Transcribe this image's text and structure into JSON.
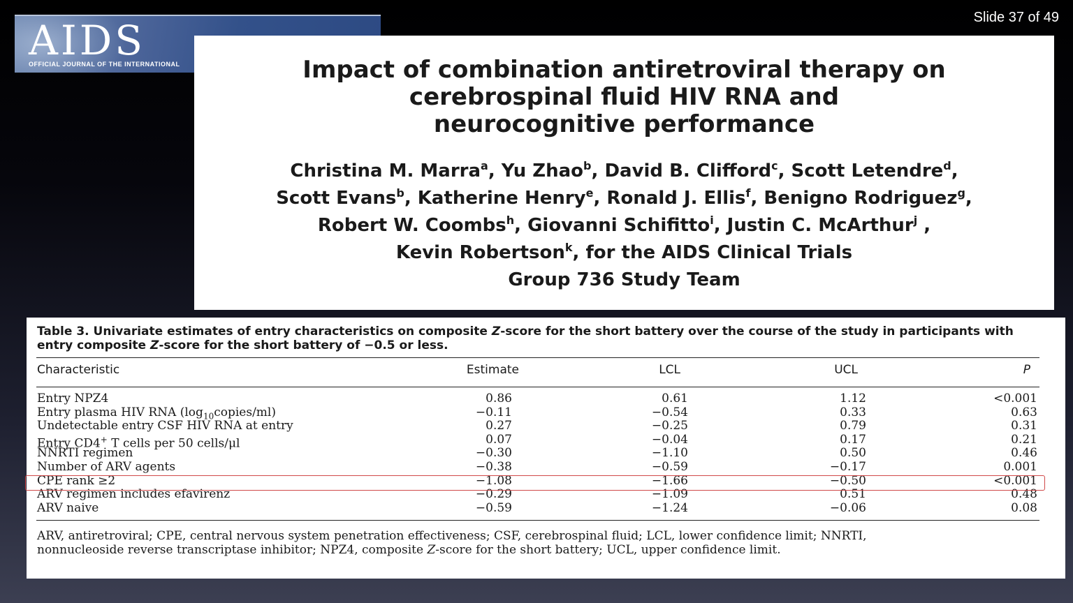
{
  "slide": {
    "counter": "Slide 37 of 49"
  },
  "journal": {
    "name": "AIDS",
    "tagline": "OFFICIAL JOURNAL OF THE INTERNATIONAL"
  },
  "paper": {
    "title_lines": [
      "Impact of combination antiretroviral therapy on",
      "cerebrospinal fluid HIV RNA and",
      "neurocognitive performance"
    ],
    "authors": [
      {
        "name": "Christina M. Marra",
        "sup": "a",
        "sep": ", "
      },
      {
        "name": "Yu Zhao",
        "sup": "b",
        "sep": ", "
      },
      {
        "name": "David B. Clifford",
        "sup": "c",
        "sep": ", "
      },
      {
        "name": "Scott Letendre",
        "sup": "d",
        "sep": ", "
      },
      {
        "name": "Scott Evans",
        "sup": "b",
        "sep": ", "
      },
      {
        "name": "Katherine Henry",
        "sup": "e",
        "sep": ", "
      },
      {
        "name": "Ronald J. Ellis",
        "sup": "f",
        "sep": ", "
      },
      {
        "name": "Benigno Rodriguez",
        "sup": "g",
        "sep": ", "
      },
      {
        "name": "Robert W. Coombs",
        "sup": "h",
        "sep": ", "
      },
      {
        "name": "Giovanni Schifitto",
        "sup": "i",
        "sep": ", "
      },
      {
        "name": "Justin C. McArthur",
        "sup": "j",
        "sep": " , "
      },
      {
        "name": "Kevin Robertson",
        "sup": "k",
        "sep": ", "
      }
    ],
    "author_lines": [
      [
        0,
        1,
        2,
        3
      ],
      [
        4,
        5,
        6,
        7
      ],
      [
        8,
        9,
        10
      ],
      [
        11
      ]
    ],
    "group_line_1": "for the AIDS Clinical Trials",
    "group_line_2": "Group 736 Study Team"
  },
  "table": {
    "caption_line_1": "Table 3.  Univariate estimates of entry characteristics on composite Z-score for the short battery over the course of the study in participants with",
    "caption_line_2": "entry composite Z-score for the short battery of −0.5 or less.",
    "headers": [
      "Characteristic",
      "Estimate",
      "LCL",
      "UCL",
      "P"
    ],
    "rows": [
      {
        "characteristic": "Entry NPZ4",
        "estimate": "0.86",
        "lcl": "0.61",
        "ucl": "1.12",
        "p": "<0.001"
      },
      {
        "characteristic": "Entry plasma HIV RNA (log10copies/ml)",
        "estimate": "−0.11",
        "lcl": "−0.54",
        "ucl": "0.33",
        "p": "0.63"
      },
      {
        "characteristic": "Undetectable entry CSF HIV RNA at entry",
        "estimate": "0.27",
        "lcl": "−0.25",
        "ucl": "0.79",
        "p": "0.31"
      },
      {
        "characteristic": "Entry CD4+ T cells per 50 cells/μl",
        "estimate": "0.07",
        "lcl": "−0.04",
        "ucl": "0.17",
        "p": "0.21"
      },
      {
        "characteristic": "NNRTI regimen",
        "estimate": "−0.30",
        "lcl": "−1.10",
        "ucl": "0.50",
        "p": "0.46"
      },
      {
        "characteristic": "Number of ARV agents",
        "estimate": "−0.38",
        "lcl": "−0.59",
        "ucl": "−0.17",
        "p": "0.001"
      },
      {
        "characteristic": "CPE rank ≥2",
        "estimate": "−1.08",
        "lcl": "−1.66",
        "ucl": "−0.50",
        "p": "<0.001"
      },
      {
        "characteristic": "ARV regimen includes efavirenz",
        "estimate": "−0.29",
        "lcl": "−1.09",
        "ucl": "0.51",
        "p": "0.48"
      },
      {
        "characteristic": "ARV naive",
        "estimate": "−0.59",
        "lcl": "−1.24",
        "ucl": "−0.06",
        "p": "0.08"
      }
    ],
    "highlighted_row": 6,
    "highlight_color": "#d04848",
    "footnote_line_1": "ARV, antiretroviral; CPE, central nervous system penetration effectiveness; CSF, cerebrospinal fluid; LCL, lower confidence limit; NNRTI,",
    "footnote_line_2": "nonnucleoside reverse transcriptase inhibitor; NPZ4, composite Z-score for the short battery; UCL, upper confidence limit."
  }
}
